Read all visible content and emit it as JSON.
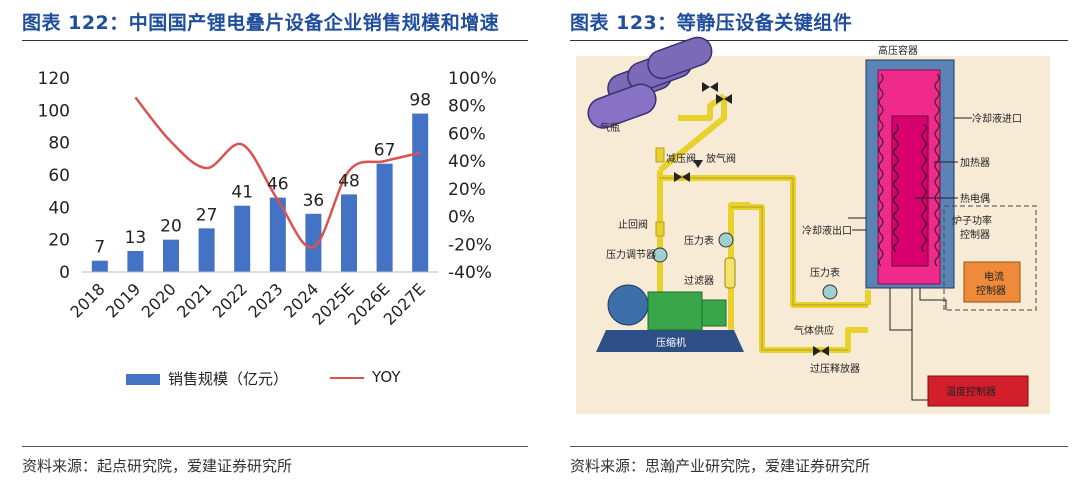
{
  "left": {
    "title": "图表 122：中国国产锂电叠片设备企业销售规模和增速",
    "source": "资料来源：起点研究院，爱建证券研究所",
    "legend": {
      "bar_label": "销售规模（亿元）",
      "line_label": "YOY"
    }
  },
  "right": {
    "title": "图表 123：等静压设备关键组件",
    "source": "资料来源：思瀚产业研究院，爱建证券研究所",
    "labels": {
      "gas_bottle": "气瓶",
      "pressure_reducer": "减压阀",
      "vent_valve": "放气阀",
      "check_valve": "止回阀",
      "pressure_regulator": "压力调节器",
      "pressure_gauge_1": "压力表",
      "filter": "过滤器",
      "pressure_gauge_2": "压力表",
      "compressor": "压缩机",
      "gas_supply": "气体供应",
      "relief_valve": "过压释放器",
      "vessel": "高压容器",
      "coolant_in": "冷却液进口",
      "coolant_out": "冷却液出口",
      "heater": "加热器",
      "thermocouple": "热电偶",
      "furnace_power": "炉子功率\n控制器",
      "current_ctrl": "电流\n控制器",
      "temp_ctrl": "温度控制器"
    }
  },
  "chart_data": {
    "type": "bar",
    "categories": [
      "2018",
      "2019",
      "2020",
      "2021",
      "2022",
      "2023",
      "2024",
      "2025E",
      "2026E",
      "2027E"
    ],
    "series": [
      {
        "name": "销售规模（亿元）",
        "type": "bar",
        "axis": "left",
        "color": "#4472c4",
        "values": [
          7,
          13,
          20,
          27,
          41,
          46,
          36,
          48,
          67,
          98
        ]
      },
      {
        "name": "YOY",
        "type": "line",
        "axis": "right",
        "color": "#d9534f",
        "values": [
          null,
          86,
          54,
          35,
          52,
          12,
          -22,
          33,
          40,
          46
        ]
      }
    ],
    "left_axis": {
      "ylim": [
        0,
        120
      ],
      "ticks": [
        "0",
        "20",
        "40",
        "60",
        "80",
        "100",
        "120"
      ]
    },
    "right_axis": {
      "ylim": [
        -40,
        100
      ],
      "ticks": [
        "-40%",
        "-20%",
        "0%",
        "20%",
        "40%",
        "60%",
        "80%",
        "100%"
      ]
    },
    "data_labels": [
      "7",
      "13",
      "20",
      "27",
      "41",
      "46",
      "36",
      "48",
      "67",
      "98"
    ],
    "legend_position": "bottom",
    "grid": false
  }
}
